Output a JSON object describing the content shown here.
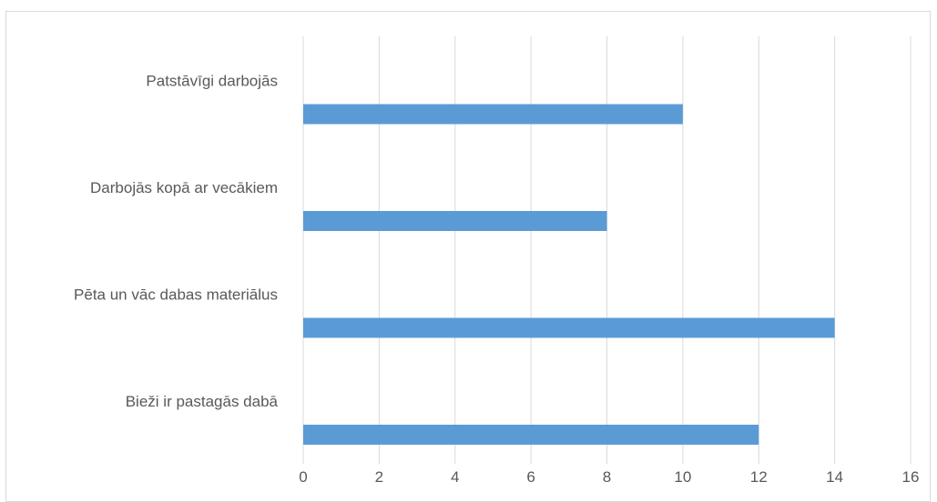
{
  "chart_data": {
    "type": "bar",
    "orientation": "horizontal",
    "title": "",
    "xlabel": "",
    "ylabel": "",
    "categories": [
      "Patstāvīgi darbojās",
      "Darbojās kopā ar vecākiem",
      "Pēta un vāc dabas materiālus",
      "Bieži ir pastagās dabā"
    ],
    "values": [
      10,
      8,
      14,
      12
    ],
    "xlim": [
      0,
      16
    ],
    "x_ticks": [
      "0",
      "2",
      "4",
      "6",
      "8",
      "10",
      "12",
      "14",
      "16"
    ],
    "grid": true,
    "legend": "none",
    "colors": {
      "bar": "#5b9bd5",
      "grid": "#d9d9d9",
      "text": "#595959",
      "border": "#d9d9d9"
    }
  }
}
